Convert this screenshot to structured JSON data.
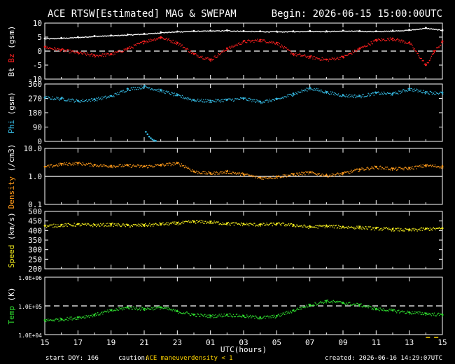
{
  "header": {
    "title": "ACE RTSW[Estimated] MAG & SWEPAM",
    "begin": "Begin: 2026-06-15 15:00:00UTC"
  },
  "footer": {
    "start_doy": "start DOY: 166",
    "caution": "caution:",
    "maneuver": "ACE maneuver",
    "density_note": "density < 1",
    "created": "created: 2026-06-16 14:29:07UTC"
  },
  "colors": {
    "background": "#000000",
    "frame": "#ffffff",
    "bt": "#ffffff",
    "bz": "#ff2020",
    "phi": "#35b8e0",
    "density": "#ff9a1a",
    "speed": "#f5ee1e",
    "temp": "#2fdc2f",
    "caution": "#ffd400",
    "maneuver_mark": "#ffd400"
  },
  "chart_data": [
    {
      "type": "scatter",
      "panel": "mag",
      "ylabel_parts": [
        "Bt",
        "Bz",
        "(gsm)"
      ],
      "ylim": [
        -10,
        10
      ],
      "yticks": [
        "10",
        "5",
        "0",
        "-5",
        "-10"
      ],
      "ytick_values": [
        10,
        5,
        0,
        -5,
        -10
      ],
      "reference_lines": [
        0
      ],
      "series": [
        {
          "name": "Bt",
          "color_key": "bt",
          "x": [
            0,
            1,
            2,
            3,
            4,
            5,
            6,
            7,
            8,
            9,
            10,
            11,
            12,
            13,
            14,
            15,
            16,
            17,
            18,
            19,
            20,
            21,
            22,
            23,
            24
          ],
          "y": [
            4.5,
            4.7,
            5.0,
            5.4,
            5.6,
            5.9,
            6.2,
            6.7,
            7.0,
            7.2,
            7.3,
            7.4,
            7.2,
            7.1,
            7.0,
            7.1,
            7.2,
            7.1,
            7.3,
            7.2,
            7.1,
            7.3,
            7.6,
            8.3,
            7.5
          ]
        },
        {
          "name": "Bz",
          "color_key": "bz",
          "x": [
            0,
            1,
            2,
            3,
            4,
            5,
            6,
            7,
            8,
            9,
            10,
            11,
            12,
            13,
            14,
            15,
            16,
            17,
            18,
            19,
            20,
            21,
            22,
            23,
            23.5,
            24
          ],
          "y": [
            1.5,
            0.5,
            -0.5,
            -1.5,
            -1.0,
            1.0,
            3.5,
            5.0,
            3.0,
            -1.0,
            -3.0,
            1.0,
            3.5,
            4.0,
            3.0,
            -1.0,
            -2.0,
            -3.0,
            -2.0,
            1.0,
            4.0,
            4.5,
            3.0,
            -5.0,
            0.0,
            3.5
          ]
        }
      ]
    },
    {
      "type": "scatter",
      "panel": "phi",
      "ylabel_parts": [
        "Phi",
        "(gsm)"
      ],
      "ylim": [
        0,
        360
      ],
      "yticks": [
        "360",
        "270",
        "180",
        "90",
        "0"
      ],
      "ytick_values": [
        360,
        270,
        180,
        90,
        0
      ],
      "series": [
        {
          "name": "Phi",
          "color_key": "phi",
          "x": [
            0,
            1,
            2,
            3,
            4,
            5,
            6,
            7,
            8,
            9,
            10,
            11,
            12,
            13,
            14,
            15,
            16,
            17,
            18,
            19,
            20,
            21,
            22,
            23,
            24
          ],
          "y": [
            275,
            270,
            255,
            265,
            285,
            330,
            345,
            320,
            290,
            260,
            255,
            262,
            270,
            250,
            265,
            300,
            335,
            310,
            290,
            285,
            305,
            300,
            330,
            310,
            305
          ]
        }
      ],
      "extra_points": {
        "x": [
          6.1,
          6.2,
          6.3,
          6.4,
          6.5,
          6.6,
          6.7
        ],
        "y": [
          60,
          45,
          30,
          20,
          12,
          6,
          3
        ]
      }
    },
    {
      "type": "scatter",
      "panel": "density",
      "ylabel_parts": [
        "Density",
        "(/cm3)"
      ],
      "ylim": [
        0.1,
        10
      ],
      "log_scale": true,
      "yticks": [
        "10.0",
        "1.0",
        "0.1"
      ],
      "ytick_values": [
        10,
        1,
        0.1
      ],
      "reference_lines": [
        1
      ],
      "series": [
        {
          "name": "Density",
          "color_key": "density",
          "x": [
            0,
            1,
            2,
            3,
            4,
            5,
            6,
            7,
            8,
            9,
            10,
            11,
            12,
            13,
            14,
            15,
            16,
            17,
            18,
            19,
            20,
            21,
            22,
            23,
            24
          ],
          "y": [
            2.2,
            2.8,
            3.0,
            2.6,
            2.4,
            2.5,
            2.3,
            2.6,
            3.0,
            1.5,
            1.3,
            1.5,
            1.2,
            0.9,
            1.0,
            1.2,
            1.4,
            1.1,
            1.3,
            1.8,
            2.2,
            1.9,
            2.0,
            2.5,
            2.3
          ]
        }
      ]
    },
    {
      "type": "scatter",
      "panel": "speed",
      "ylabel_parts": [
        "Speed",
        "(km/s)"
      ],
      "ylim": [
        200,
        500
      ],
      "yticks": [
        "500",
        "450",
        "400",
        "350",
        "300",
        "250",
        "200"
      ],
      "ytick_values": [
        500,
        450,
        400,
        350,
        300,
        250,
        200
      ],
      "series": [
        {
          "name": "Speed",
          "color_key": "speed",
          "x": [
            0,
            1,
            2,
            3,
            4,
            5,
            6,
            7,
            8,
            9,
            10,
            11,
            12,
            13,
            14,
            15,
            16,
            17,
            18,
            19,
            20,
            21,
            22,
            23,
            24
          ],
          "y": [
            425,
            430,
            433,
            430,
            433,
            428,
            430,
            435,
            440,
            448,
            445,
            438,
            435,
            432,
            436,
            430,
            420,
            425,
            420,
            418,
            412,
            408,
            404,
            410,
            412
          ]
        }
      ]
    },
    {
      "type": "scatter",
      "panel": "temp",
      "ylabel_parts": [
        "Temp",
        "(K)"
      ],
      "ylim": [
        10000,
        1000000
      ],
      "log_scale": true,
      "yticks": [
        "1.0E+06",
        "1.0E+05",
        "1.0E+04"
      ],
      "ytick_values": [
        1000000,
        100000,
        10000
      ],
      "reference_lines": [
        100000
      ],
      "series": [
        {
          "name": "Temp",
          "color_key": "temp",
          "x": [
            0,
            1,
            2,
            3,
            4,
            5,
            6,
            7,
            8,
            9,
            10,
            11,
            12,
            13,
            14,
            15,
            16,
            17,
            18,
            19,
            20,
            21,
            22,
            23,
            24
          ],
          "y": [
            32000,
            35000,
            40000,
            50000,
            70000,
            90000,
            80000,
            90000,
            65000,
            50000,
            45000,
            50000,
            45000,
            40000,
            45000,
            70000,
            110000,
            150000,
            130000,
            110000,
            80000,
            70000,
            60000,
            55000,
            50000
          ]
        }
      ]
    }
  ],
  "xaxis": {
    "label": "UTC(hours)",
    "range": [
      0,
      24
    ],
    "ticks": [
      "15",
      "17",
      "19",
      "21",
      "23",
      "01",
      "03",
      "05",
      "07",
      "09",
      "11",
      "13",
      "15"
    ],
    "tick_hours": [
      0,
      2,
      4,
      6,
      8,
      10,
      12,
      14,
      16,
      18,
      20,
      22,
      24
    ]
  }
}
